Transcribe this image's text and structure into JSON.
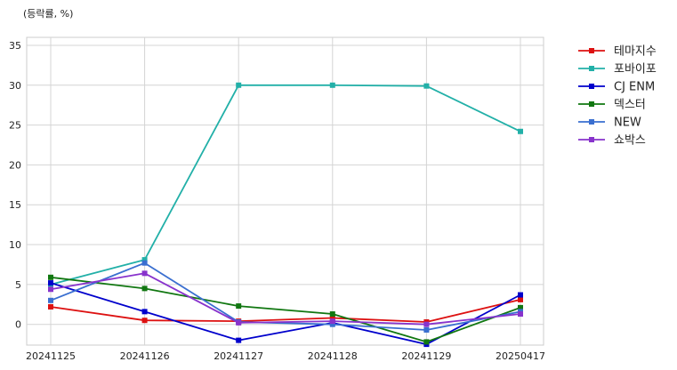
{
  "chart_data": {
    "type": "line",
    "title": "",
    "unit_label": "(등락률, %)",
    "xlabel": "",
    "ylabel": "",
    "x": [
      "20241125",
      "20241126",
      "20241127",
      "20241128",
      "20241129",
      "20250417"
    ],
    "ylim": [
      -2.6,
      36
    ],
    "yticks": [
      0,
      5,
      10,
      15,
      20,
      25,
      30,
      35
    ],
    "grid": true,
    "legend_position": "outside-top-right",
    "series": [
      {
        "name": "테마지수",
        "color": "#dd1111",
        "values": [
          2.2,
          0.5,
          0.4,
          0.8,
          0.3,
          3.1
        ]
      },
      {
        "name": "포바이포",
        "color": "#22b0a8",
        "values": [
          5.0,
          8.1,
          30.0,
          30.0,
          29.9,
          24.2
        ]
      },
      {
        "name": "CJ ENM",
        "color": "#0000cc",
        "values": [
          5.2,
          1.6,
          -2.0,
          0.2,
          -2.5,
          3.7
        ]
      },
      {
        "name": "덱스터",
        "color": "#117711",
        "values": [
          5.9,
          4.5,
          2.3,
          1.3,
          -2.2,
          2.1
        ]
      },
      {
        "name": "NEW",
        "color": "#3a6fd0",
        "values": [
          3.0,
          7.7,
          0.3,
          0.0,
          -0.7,
          1.6
        ]
      },
      {
        "name": "쇼박스",
        "color": "#8833cc",
        "values": [
          4.4,
          6.4,
          0.2,
          0.4,
          0.0,
          1.3
        ]
      }
    ]
  }
}
